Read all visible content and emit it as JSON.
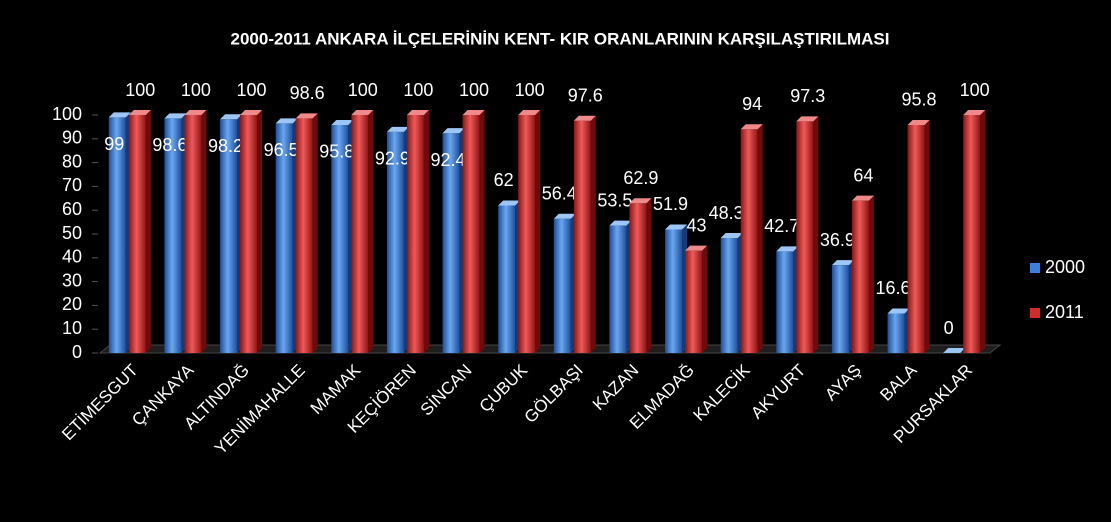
{
  "chart_data": {
    "type": "bar",
    "title": "2000-2011 ANKARA İLÇELERİNİN KENT- KIR ORANLARININ KARŞILAŞTIRILMASI",
    "categories": [
      "ETİMESGUT",
      "ÇANKAYA",
      "ALTINDAĞ",
      "YENİMAHALLE",
      "MAMAK",
      "KEÇİÖREN",
      "SİNCAN",
      "ÇUBUK",
      "GÖLBAŞI",
      "KAZAN",
      "ELMADAĞ",
      "KALECİK",
      "AKYURT",
      "AYAŞ",
      "BALA",
      "PURSAKLAR"
    ],
    "series": [
      {
        "name": "2000",
        "color": "#3a7fd9",
        "values": [
          99,
          98.6,
          98.2,
          96.5,
          95.8,
          92.9,
          92.4,
          62,
          56.4,
          53.5,
          51.9,
          48.3,
          42.7,
          36.9,
          16.6,
          0
        ]
      },
      {
        "name": "2011",
        "color": "#d42a2a",
        "values": [
          100,
          100,
          100,
          98.6,
          100,
          100,
          100,
          100,
          97.6,
          62.9,
          43,
          94,
          97.3,
          64,
          95.8,
          100
        ]
      }
    ],
    "ylim": [
      0,
      100
    ],
    "yticks": [
      0,
      10,
      20,
      30,
      40,
      50,
      60,
      70,
      80,
      90,
      100
    ],
    "grid": false,
    "legend": "right"
  }
}
